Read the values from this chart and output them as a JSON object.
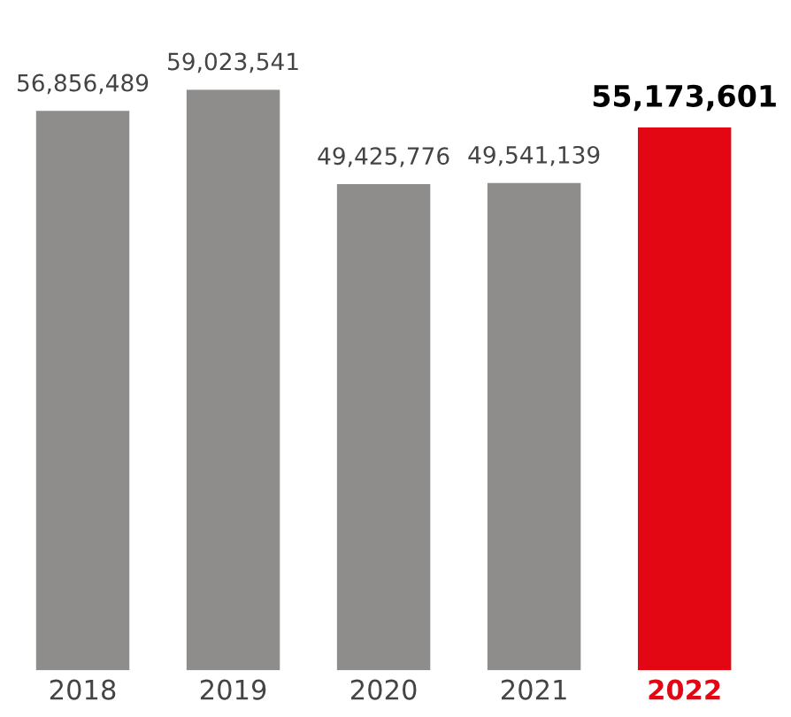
{
  "chart_data": {
    "type": "bar",
    "categories": [
      "2018",
      "2019",
      "2020",
      "2021",
      "2022"
    ],
    "values": [
      56856489,
      59023541,
      49425776,
      49541139,
      55173601
    ],
    "colors": [
      "#8e8d8c",
      "#8e8d8c",
      "#8e8d8c",
      "#8e8d8c",
      "#e30613"
    ],
    "value_labels": [
      "56,856,489",
      "59,023,541",
      "49,425,776",
      "49,541,139",
      "55,173,601"
    ]
  }
}
